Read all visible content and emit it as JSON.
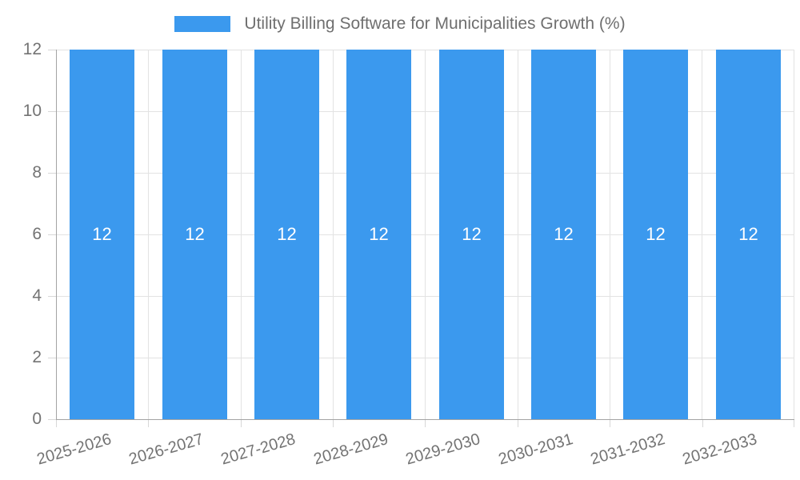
{
  "chart_data": {
    "type": "bar",
    "title": "Utility Billing Software for Municipalities Growth (%)",
    "legend_label": "Utility Billing Software for Municipalities Growth (%)",
    "legend_position": "top-center",
    "categories": [
      "2025-2026",
      "2026-2027",
      "2027-2028",
      "2028-2029",
      "2029-2030",
      "2030-2031",
      "2031-2032",
      "2032-2033"
    ],
    "values": [
      12,
      12,
      12,
      12,
      12,
      12,
      12,
      12
    ],
    "xlabel": "",
    "ylabel": "",
    "ylim": [
      0,
      12
    ],
    "yticks": [
      0,
      2,
      4,
      6,
      8,
      10,
      12
    ],
    "grid": true,
    "colors": {
      "bar": "#3b99ee",
      "bar_label": "#ffffff",
      "axis_text": "#737373",
      "legend_text": "#6f6f6f",
      "grid_line": "#e3e3e3",
      "axis_line": "#a3a3a3",
      "background": "#ffffff"
    }
  }
}
